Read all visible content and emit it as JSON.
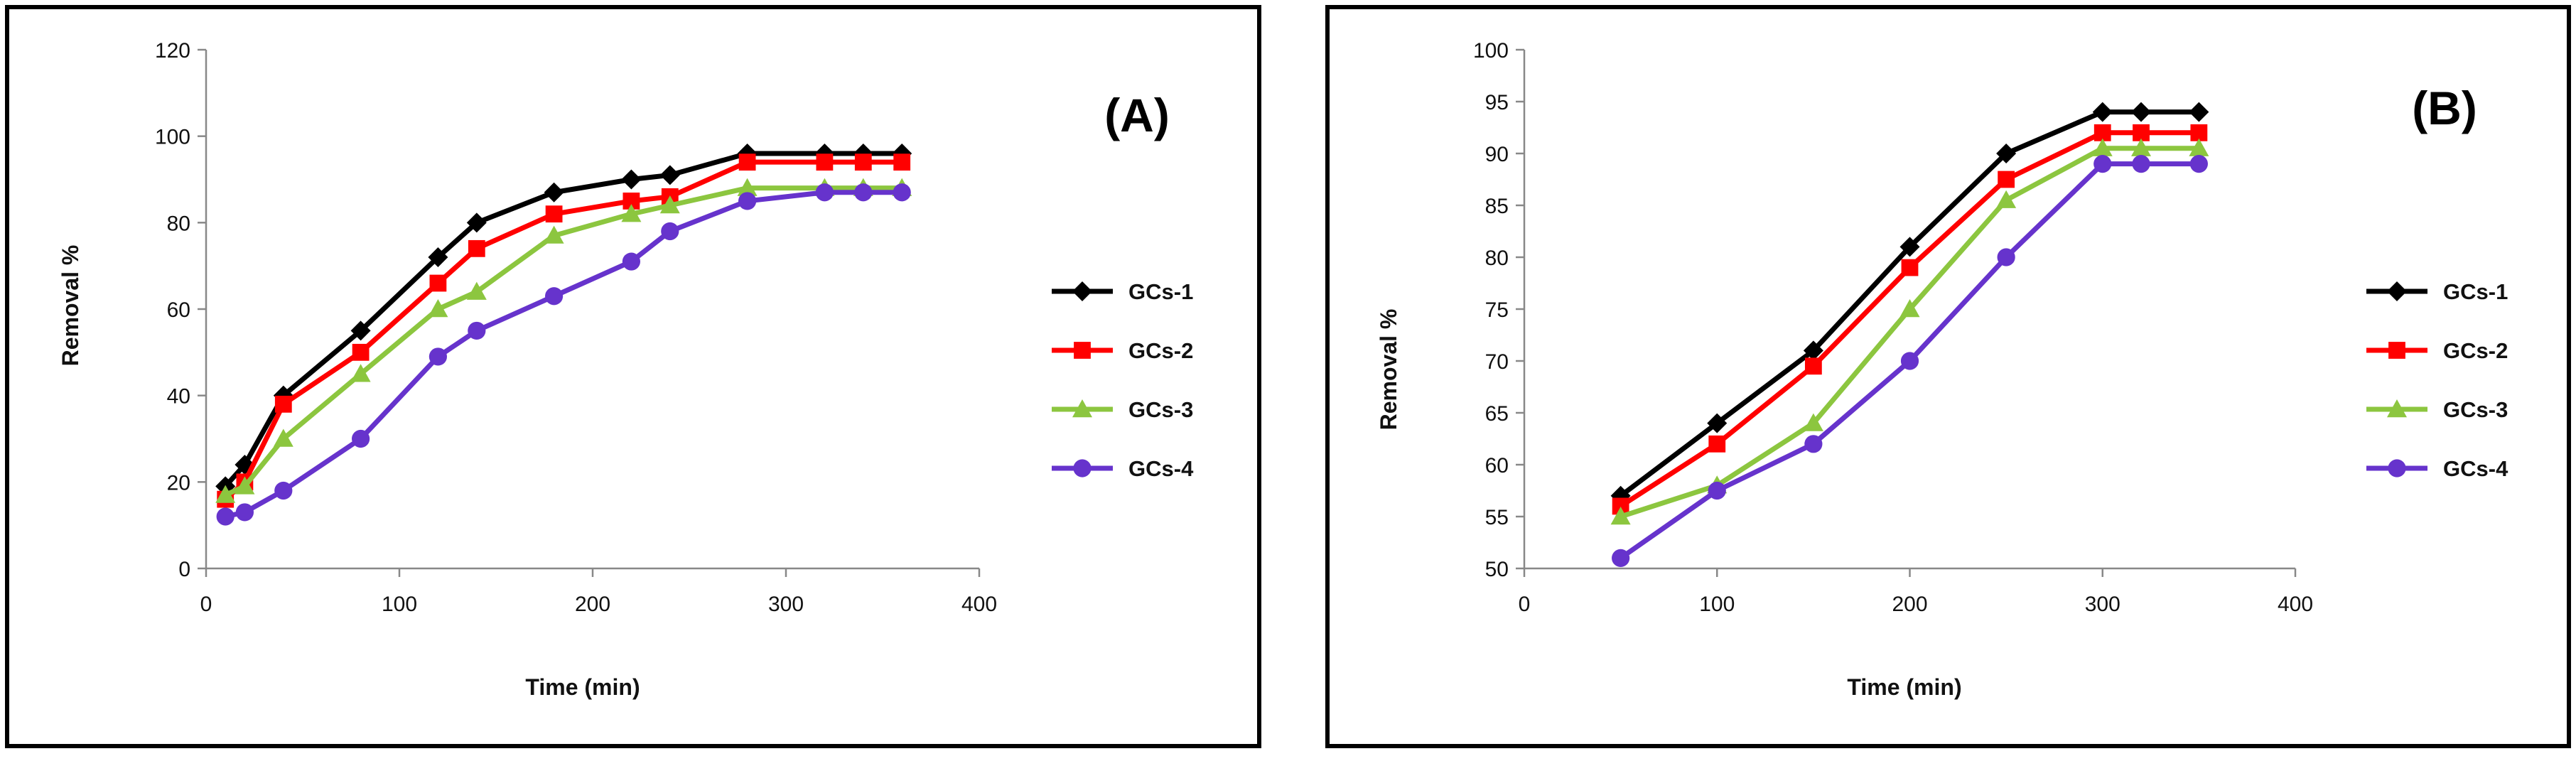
{
  "chart_data": [
    {
      "type": "line",
      "panel_label": "(A)",
      "xlabel": "Time (min)",
      "ylabel": "Removal %",
      "xlim": [
        0,
        400
      ],
      "ylim": [
        0,
        120
      ],
      "xticks": [
        "0",
        "100",
        "200",
        "300",
        "400"
      ],
      "yticks": [
        "0",
        "20",
        "40",
        "60",
        "80",
        "100",
        "120"
      ],
      "grid": false,
      "legend_position": "right",
      "series": [
        {
          "name": "GCs-1",
          "color": "#000000",
          "marker": "diamond",
          "x": [
            10,
            20,
            40,
            80,
            120,
            140,
            180,
            220,
            240,
            280,
            320,
            340,
            360
          ],
          "y": [
            19,
            24,
            40,
            55,
            72,
            80,
            87,
            90,
            91,
            96,
            96,
            96,
            96
          ]
        },
        {
          "name": "GCs-2",
          "color": "#ff0000",
          "marker": "square",
          "x": [
            10,
            20,
            40,
            80,
            120,
            140,
            180,
            220,
            240,
            280,
            320,
            340,
            360
          ],
          "y": [
            16,
            20,
            38,
            50,
            66,
            74,
            82,
            85,
            86,
            94,
            94,
            94,
            94
          ]
        },
        {
          "name": "GCs-3",
          "color": "#8cc63f",
          "marker": "triangle",
          "x": [
            10,
            20,
            40,
            80,
            120,
            140,
            180,
            220,
            240,
            280,
            320,
            340,
            360
          ],
          "y": [
            17,
            19,
            30,
            45,
            60,
            64,
            77,
            82,
            84,
            88,
            88,
            88,
            88
          ]
        },
        {
          "name": "GCs-4",
          "color": "#6633cc",
          "marker": "circle",
          "x": [
            10,
            20,
            40,
            80,
            120,
            140,
            180,
            220,
            240,
            280,
            320,
            340,
            360
          ],
          "y": [
            12,
            13,
            18,
            30,
            49,
            55,
            63,
            71,
            78,
            85,
            87,
            87,
            87
          ]
        }
      ]
    },
    {
      "type": "line",
      "panel_label": "(B)",
      "xlabel": "Time (min)",
      "ylabel": "Removal %",
      "xlim": [
        0,
        400
      ],
      "ylim": [
        50,
        100
      ],
      "xticks": [
        "0",
        "100",
        "200",
        "300",
        "400"
      ],
      "yticks": [
        "50",
        "55",
        "60",
        "65",
        "70",
        "75",
        "80",
        "85",
        "90",
        "95",
        "100"
      ],
      "grid": false,
      "legend_position": "right",
      "series": [
        {
          "name": "GCs-1",
          "color": "#000000",
          "marker": "diamond",
          "x": [
            50,
            100,
            150,
            200,
            250,
            300,
            320,
            350
          ],
          "y": [
            57,
            64,
            71,
            81,
            90,
            94,
            94,
            94
          ]
        },
        {
          "name": "GCs-2",
          "color": "#ff0000",
          "marker": "square",
          "x": [
            50,
            100,
            150,
            200,
            250,
            300,
            320,
            350
          ],
          "y": [
            56,
            62,
            69.5,
            79,
            87.5,
            92,
            92,
            92
          ]
        },
        {
          "name": "GCs-3",
          "color": "#8cc63f",
          "marker": "triangle",
          "x": [
            50,
            100,
            150,
            200,
            250,
            300,
            320,
            350
          ],
          "y": [
            55,
            58,
            64,
            75,
            85.5,
            90.5,
            90.5,
            90.5
          ]
        },
        {
          "name": "GCs-4",
          "color": "#6633cc",
          "marker": "circle",
          "x": [
            50,
            100,
            150,
            200,
            250,
            300,
            320,
            350
          ],
          "y": [
            51,
            57.5,
            62,
            70,
            80,
            89,
            89,
            89
          ]
        }
      ]
    }
  ]
}
